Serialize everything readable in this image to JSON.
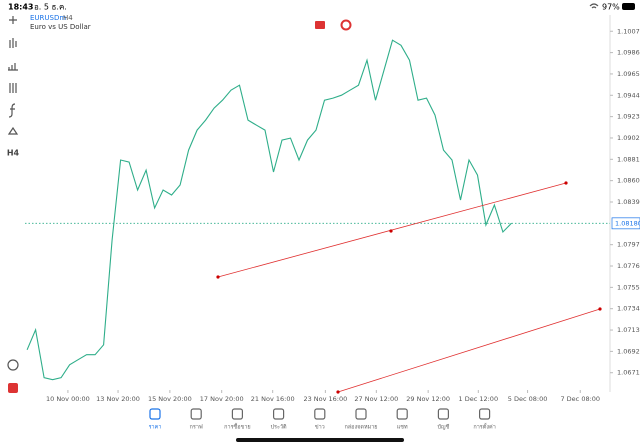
{
  "status_bar": {
    "time": "18:43",
    "date": "อ. 5 ธ.ค.",
    "battery": "97%"
  },
  "header": {
    "symbol": "EURUSDm",
    "timeframe": "H4",
    "description": "Euro vs US Dollar"
  },
  "chart_data": {
    "type": "line",
    "color": "#2fae8a",
    "values": [
      1.06936,
      1.07132,
      1.06661,
      1.06641,
      1.06661,
      1.06788,
      1.06838,
      1.06887,
      1.06887,
      1.06985,
      1.08017,
      1.08803,
      1.08783,
      1.08508,
      1.08704,
      1.08331,
      1.08508,
      1.08459,
      1.08557,
      1.08901,
      1.09097,
      1.09196,
      1.09314,
      1.09392,
      1.0949,
      1.09539,
      1.09196,
      1.09146,
      1.09097,
      1.08685,
      1.08999,
      1.09019,
      1.08803,
      1.08999,
      1.09097,
      1.09392,
      1.09412,
      1.09441,
      1.0949,
      1.09539,
      1.09785,
      1.09392,
      1.09687,
      1.09982,
      1.09932,
      1.09785,
      1.09392,
      1.09412,
      1.09245,
      1.08901,
      1.08803,
      1.0841,
      1.08803,
      1.08655,
      1.08164,
      1.0836,
      1.08095,
      1.0818
    ],
    "xlim": [
      -0.25,
      68.6
    ],
    "xticks": [
      {
        "value": 4.8,
        "label": "10 Nov 00:00"
      },
      {
        "value": 10.7,
        "label": "13 Nov 20:00"
      },
      {
        "value": 16.8,
        "label": "15 Nov 20:00"
      },
      {
        "value": 22.9,
        "label": "17 Nov 20:00"
      },
      {
        "value": 28.9,
        "label": "21 Nov 16:00"
      },
      {
        "value": 35.1,
        "label": "23 Nov 16:00"
      },
      {
        "value": 41.1,
        "label": "27 Nov 12:00"
      },
      {
        "value": 47.2,
        "label": "29 Nov 12:00"
      },
      {
        "value": 53.1,
        "label": "1 Dec 12:00"
      },
      {
        "value": 58.9,
        "label": "5 Dec 08:00"
      },
      {
        "value": 65.1,
        "label": "7 Dec 08:00"
      }
    ],
    "ylim": [
      1.0654,
      1.1023
    ],
    "yticks": [
      {
        "value": 1.1007,
        "label": "1.10070"
      },
      {
        "value": 1.0986,
        "label": "1.09860"
      },
      {
        "value": 1.0965,
        "label": "1.09650"
      },
      {
        "value": 1.0944,
        "label": "1.09440"
      },
      {
        "value": 1.0923,
        "label": "1.09230"
      },
      {
        "value": 1.0902,
        "label": "1.09020"
      },
      {
        "value": 1.0881,
        "label": "1.08810"
      },
      {
        "value": 1.086,
        "label": "1.08600"
      },
      {
        "value": 1.0839,
        "label": "1.08390"
      },
      {
        "value": 1.0797,
        "label": "1.07970"
      },
      {
        "value": 1.0776,
        "label": "1.07760"
      },
      {
        "value": 1.0755,
        "label": "1.07550"
      },
      {
        "value": 1.0734,
        "label": "1.07340"
      },
      {
        "value": 1.0713,
        "label": "1.07130"
      },
      {
        "value": 1.0692,
        "label": "1.06920"
      },
      {
        "value": 1.0671,
        "label": "1.06710"
      }
    ],
    "current_price": {
      "value": 1.0818,
      "label": "1.08180"
    }
  },
  "nav": {
    "items": [
      "ราคา",
      "กราฟ",
      "การซื้อขาย",
      "ประวัติ",
      "ข่าว",
      "กล่องจดหมาย",
      "แชท",
      "บัญชี",
      "การตั้งค่า"
    ]
  }
}
